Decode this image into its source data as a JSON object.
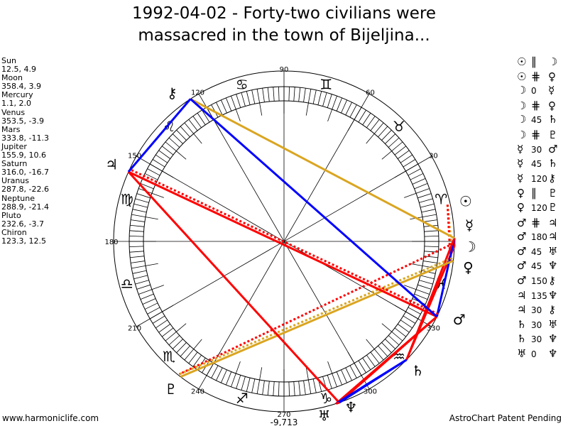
{
  "title_line1": "1992-04-02 - Forty-two civilians were",
  "title_line2": "massacred in the town of Bijeljina...",
  "planets": [
    {
      "name": "Sun",
      "coords": "12.5, 4.9",
      "lon": 12.5,
      "glyph": "☉"
    },
    {
      "name": "Moon",
      "coords": "358.4, 3.9",
      "lon": 358.4,
      "glyph": "☽"
    },
    {
      "name": "Mercury",
      "coords": "1.1, 2.0",
      "lon": 1.1,
      "glyph": "☿"
    },
    {
      "name": "Venus",
      "coords": "353.5, -3.9",
      "lon": 353.5,
      "glyph": "♀"
    },
    {
      "name": "Mars",
      "coords": "333.8, -11.3",
      "lon": 333.8,
      "glyph": "♂"
    },
    {
      "name": "Jupiter",
      "coords": "155.9, 10.6",
      "lon": 155.9,
      "glyph": "♃"
    },
    {
      "name": "Saturn",
      "coords": "316.0, -16.7",
      "lon": 316.0,
      "glyph": "♄"
    },
    {
      "name": "Uranus",
      "coords": "287.8, -22.6",
      "lon": 287.8,
      "glyph": "♅"
    },
    {
      "name": "Neptune",
      "coords": "288.9, -21.4",
      "lon": 288.9,
      "glyph": "♆"
    },
    {
      "name": "Pluto",
      "coords": "232.6, -3.7",
      "lon": 232.6,
      "glyph": "♇"
    },
    {
      "name": "Chiron",
      "coords": "123.3, 12.5",
      "lon": 123.3,
      "glyph": "⚷"
    }
  ],
  "zodiac": [
    "♈",
    "♉",
    "♊",
    "♋",
    "♌",
    "♍",
    "♎",
    "♏",
    "♐",
    "♑",
    "♒",
    "♓"
  ],
  "degree_labels": [
    "30",
    "60",
    "90",
    "120",
    "150",
    "180",
    "210",
    "240",
    "270",
    "300",
    "330"
  ],
  "bottom_value": "-9,713",
  "aspects": [
    {
      "p1": 0,
      "p2": 1,
      "type": "∥",
      "color": "#daa520",
      "dotted": true
    },
    {
      "p1": 0,
      "p2": 3,
      "type": "⋕",
      "color": "#ff0000",
      "dotted": true
    },
    {
      "p1": 1,
      "p2": 2,
      "type": "0",
      "color": "#ff0000",
      "dotted": false
    },
    {
      "p1": 1,
      "p2": 3,
      "type": "⋕",
      "color": "#ff0000",
      "dotted": true
    },
    {
      "p1": 1,
      "p2": 6,
      "type": "45",
      "color": "#ff0000",
      "dotted": false
    },
    {
      "p1": 1,
      "p2": 9,
      "type": "⋕",
      "color": "#ff0000",
      "dotted": true
    },
    {
      "p1": 2,
      "p2": 4,
      "type": "30",
      "color": "#0000ff",
      "dotted": false
    },
    {
      "p1": 2,
      "p2": 6,
      "type": "45",
      "color": "#ff0000",
      "dotted": false
    },
    {
      "p1": 2,
      "p2": 10,
      "type": "120",
      "color": "#daa520",
      "dotted": false
    },
    {
      "p1": 3,
      "p2": 9,
      "type": "∥",
      "color": "#daa520",
      "dotted": true
    },
    {
      "p1": 3,
      "p2": 9,
      "type": "120",
      "color": "#daa520",
      "dotted": false
    },
    {
      "p1": 4,
      "p2": 5,
      "type": "⋕",
      "color": "#ff0000",
      "dotted": true
    },
    {
      "p1": 4,
      "p2": 5,
      "type": "180",
      "color": "#ff0000",
      "dotted": false
    },
    {
      "p1": 4,
      "p2": 7,
      "type": "45",
      "color": "#ff0000",
      "dotted": false
    },
    {
      "p1": 4,
      "p2": 8,
      "type": "45",
      "color": "#ff0000",
      "dotted": false
    },
    {
      "p1": 4,
      "p2": 10,
      "type": "150",
      "color": "#0000ff",
      "dotted": false
    },
    {
      "p1": 5,
      "p2": 8,
      "type": "135",
      "color": "#ff0000",
      "dotted": false
    },
    {
      "p1": 5,
      "p2": 10,
      "type": "30",
      "color": "#0000ff",
      "dotted": false
    },
    {
      "p1": 6,
      "p2": 7,
      "type": "30",
      "color": "#0000ff",
      "dotted": false
    },
    {
      "p1": 6,
      "p2": 8,
      "type": "30",
      "color": "#0000ff",
      "dotted": false
    },
    {
      "p1": 7,
      "p2": 8,
      "type": "0",
      "color": "#ff0000",
      "dotted": false
    }
  ],
  "footer_left": "www.harmoniclife.com",
  "footer_right": "AstroChart Patent Pending"
}
